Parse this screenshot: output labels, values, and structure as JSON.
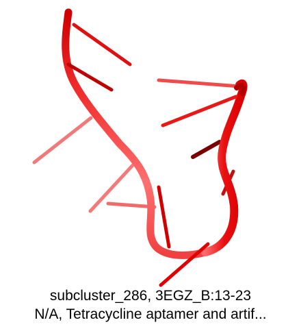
{
  "caption": {
    "line1": "subcluster_286, 3EGZ_B:13-23",
    "line2": "N/A, Tetracycline aptamer and artif..."
  },
  "colors": {
    "backbone": "#e30000",
    "backbone_light": "#ff5a5a",
    "base_far": "#f06a6a",
    "base_mid": "#e01010",
    "base_dark": "#7a0000"
  },
  "structure": {
    "residues_shown": 11,
    "representation": "cartoon"
  }
}
